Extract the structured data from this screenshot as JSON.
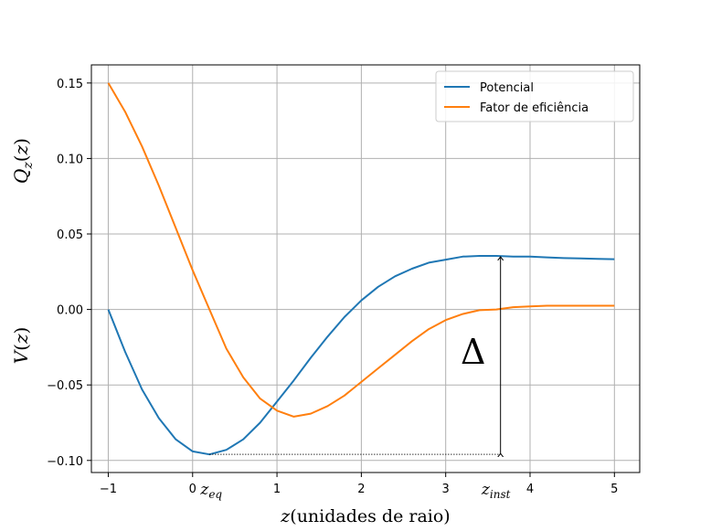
{
  "chart_data": {
    "type": "line",
    "title": "",
    "xlabel": "z(unidades de raio)",
    "ylabel_top": "Q_z(z)",
    "ylabel_bottom": "V(z)",
    "xlim": [
      -1.2,
      5.3
    ],
    "ylim": [
      -0.108,
      0.162
    ],
    "xticks": [
      -1,
      0,
      1,
      2,
      3,
      4,
      5
    ],
    "xtick_labels": [
      "−1",
      "0",
      "1",
      "2",
      "3",
      "4",
      "5"
    ],
    "yticks": [
      0.15,
      0.1,
      0.05,
      0.0,
      -0.05,
      -0.1
    ],
    "ytick_labels": [
      "0.15",
      "0.10",
      "0.05",
      "0.00",
      "−0.05",
      "−0.10"
    ],
    "grid": true,
    "legend_position": "top-right",
    "series": [
      {
        "name": "Potencial",
        "color": "#1f77b4",
        "x": [
          -1.0,
          -0.8,
          -0.6,
          -0.4,
          -0.2,
          0.0,
          0.2,
          0.4,
          0.6,
          0.8,
          1.0,
          1.2,
          1.4,
          1.6,
          1.8,
          2.0,
          2.2,
          2.4,
          2.6,
          2.8,
          3.0,
          3.2,
          3.4,
          3.6,
          3.8,
          4.0,
          4.2,
          4.4,
          4.6,
          4.8,
          5.0
        ],
        "y": [
          0.0,
          -0.028,
          -0.053,
          -0.072,
          -0.086,
          -0.094,
          -0.096,
          -0.093,
          -0.086,
          -0.075,
          -0.061,
          -0.047,
          -0.032,
          -0.018,
          -0.005,
          0.006,
          0.015,
          0.022,
          0.027,
          0.031,
          0.033,
          0.035,
          0.0355,
          0.0355,
          0.035,
          0.035,
          0.0345,
          0.034,
          0.0338,
          0.0335,
          0.0333
        ]
      },
      {
        "name": "Fator de eficiência",
        "color": "#ff7f0e",
        "x": [
          -1.0,
          -0.8,
          -0.6,
          -0.4,
          -0.2,
          0.0,
          0.2,
          0.4,
          0.6,
          0.8,
          1.0,
          1.2,
          1.4,
          1.6,
          1.8,
          2.0,
          2.2,
          2.4,
          2.6,
          2.8,
          3.0,
          3.2,
          3.4,
          3.6,
          3.8,
          4.0,
          4.2,
          4.4,
          4.6,
          4.8,
          5.0
        ],
        "y": [
          0.15,
          0.131,
          0.108,
          0.082,
          0.054,
          0.026,
          0.0,
          -0.026,
          -0.045,
          -0.059,
          -0.067,
          -0.071,
          -0.069,
          -0.064,
          -0.057,
          -0.048,
          -0.039,
          -0.03,
          -0.021,
          -0.013,
          -0.007,
          -0.003,
          -0.0005,
          0.0,
          0.0015,
          0.002,
          0.0025,
          0.0025,
          0.0025,
          0.0025,
          0.0025
        ]
      }
    ],
    "annotations": {
      "z_eq_label": "z_eq",
      "z_eq_x": 0.2,
      "z_inst_label": "z_inst",
      "z_inst_x": 3.65,
      "delta_label": "Δ",
      "delta_arrow_x": 3.65,
      "delta_arrow_y": [
        -0.096,
        0.0355
      ],
      "baseline_y": -0.096,
      "baseline_x": [
        0.2,
        3.65
      ]
    }
  }
}
